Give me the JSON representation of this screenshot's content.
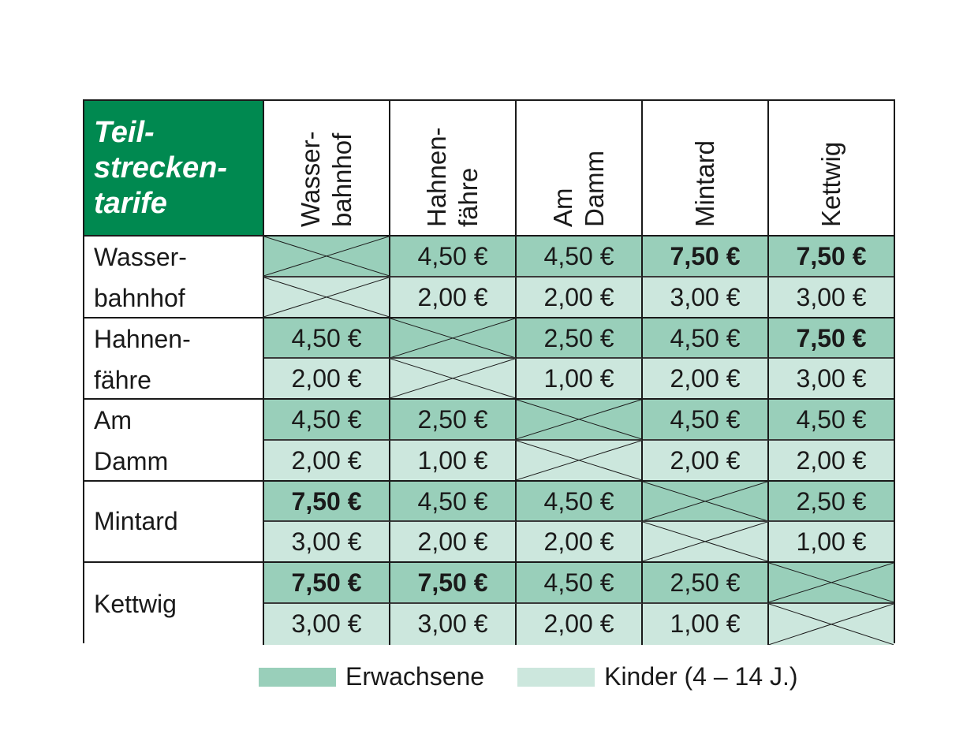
{
  "title": [
    "Teil-",
    "strecken-",
    "tarife"
  ],
  "columns": [
    {
      "label": "Wasser-\nbahnhof",
      "lines": [
        "Wasser-",
        "bahnhof"
      ]
    },
    {
      "label": "Hahnen-\nfähre",
      "lines": [
        "Hahnen-",
        "fähre"
      ]
    },
    {
      "label": "Am\nDamm",
      "lines": [
        "Am",
        "Damm"
      ]
    },
    {
      "label": "Mintard",
      "lines": [
        "Mintard"
      ]
    },
    {
      "label": "Kettwig",
      "lines": [
        "Kettwig"
      ]
    }
  ],
  "rows": [
    {
      "lines": [
        "Wasser-",
        "bahnhof"
      ],
      "adult": [
        null,
        "4,50 €",
        "4,50 €",
        "7,50 €",
        "7,50 €"
      ],
      "child": [
        null,
        "2,00 €",
        "2,00 €",
        "3,00 €",
        "3,00 €"
      ]
    },
    {
      "lines": [
        "Hahnen-",
        "fähre"
      ],
      "adult": [
        "4,50 €",
        null,
        "2,50 €",
        "4,50 €",
        "7,50 €"
      ],
      "child": [
        "2,00 €",
        null,
        "1,00 €",
        "2,00 €",
        "3,00 €"
      ]
    },
    {
      "lines": [
        "Am",
        "Damm"
      ],
      "adult": [
        "4,50 €",
        "2,50 €",
        null,
        "4,50 €",
        "4,50 €"
      ],
      "child": [
        "2,00 €",
        "1,00 €",
        null,
        "2,00 €",
        "2,00 €"
      ]
    },
    {
      "lines": [
        "Mintard"
      ],
      "adult": [
        "7,50 €",
        "4,50 €",
        "4,50 €",
        null,
        "2,50 €"
      ],
      "child": [
        "3,00 €",
        "2,00 €",
        "2,00 €",
        null,
        "1,00 €"
      ]
    },
    {
      "lines": [
        "Kettwig"
      ],
      "adult": [
        "7,50 €",
        "7,50 €",
        "4,50 €",
        "2,50 €",
        null
      ],
      "child": [
        "3,00 €",
        "3,00 €",
        "2,00 €",
        "1,00 €",
        null
      ]
    }
  ],
  "bold_value": "7,50 €",
  "legend": [
    {
      "label": "Erwachsene",
      "color": "#99cfba"
    },
    {
      "label": "Kinder (4 – 14 J.)",
      "color": "#cce7dd"
    }
  ],
  "colors": {
    "header_green": "#008950",
    "adult": "#99cfba",
    "child": "#cce7dd",
    "border": "#1a1a1a"
  }
}
